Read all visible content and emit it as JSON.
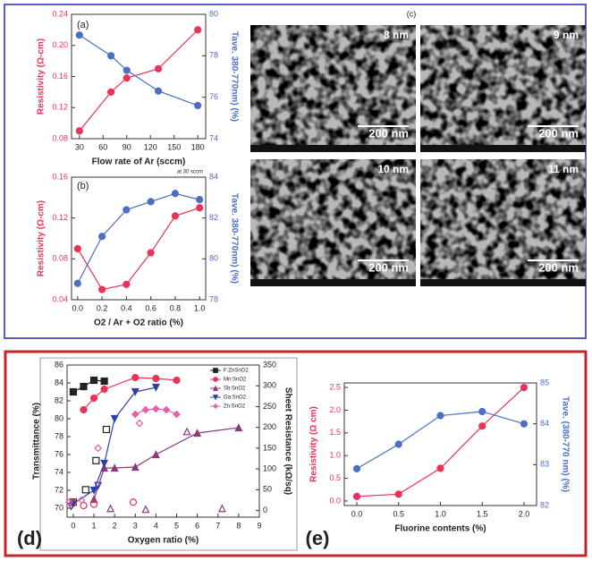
{
  "chart_data": [
    {
      "type": "line",
      "panel": "(a)",
      "x_label": "Flow rate of Ar (sccm)",
      "y_label": "Resistivity (Ω-cm)",
      "y2_label": "Tave. 380-770nm) (%)",
      "x": [
        30,
        70,
        90,
        130,
        180
      ],
      "xlim": [
        20,
        190
      ],
      "xticks": [
        30,
        60,
        90,
        120,
        150,
        180
      ],
      "ylim": [
        0.08,
        0.24
      ],
      "yticks": [
        0.08,
        0.12,
        0.16,
        {
          "value": 0.2,
          "label": "0.20"
        },
        0.24
      ],
      "y2lim": [
        74,
        80
      ],
      "y2ticks": [
        74,
        76,
        78,
        80
      ],
      "series": [
        {
          "color": "#e8335a",
          "marker": "circle",
          "values": [
            0.09,
            0.14,
            0.158,
            0.17,
            0.22
          ]
        },
        {
          "color": "#4a6fc4",
          "marker": "circle",
          "axis": "y2",
          "values": [
            79.0,
            78.0,
            77.3,
            76.3,
            75.6
          ]
        }
      ]
    },
    {
      "type": "line",
      "panel": "(b)",
      "annotation": "at 30 sccm",
      "x_label": "O2 / Ar + O2 ratio (%)",
      "y_label": "Resistivity (Ω-cm)",
      "y2_label": "Tave. 380-770nm) (%)",
      "x": [
        0,
        0.2,
        0.4,
        0.6,
        0.8,
        1.0
      ],
      "xlim": [
        -0.05,
        1.05
      ],
      "xticks": [
        {
          "value": 0,
          "label": "0.0"
        },
        0.2,
        0.4,
        0.6,
        0.8,
        {
          "value": 1,
          "label": "1.0"
        }
      ],
      "ylim": [
        0.04,
        0.16
      ],
      "yticks": [
        0.04,
        0.08,
        0.12,
        0.16
      ],
      "y2lim": [
        78,
        84
      ],
      "y2ticks": [
        78,
        80,
        82,
        84
      ],
      "series": [
        {
          "color": "#e8335a",
          "marker": "circle",
          "values": [
            0.09,
            0.05,
            0.055,
            0.086,
            0.122,
            0.13
          ]
        },
        {
          "color": "#4a6fc4",
          "marker": "circle",
          "axis": "y2",
          "values": [
            78.8,
            81.1,
            82.4,
            82.8,
            83.2,
            82.9
          ]
        }
      ]
    },
    {
      "type": "line",
      "panel": "(d)",
      "x_label": "Oxygen ratio (%)",
      "y_label": "Transmittance (%)",
      "y2_label": "Sheet Resistance (kΩ/sq)",
      "xlim": [
        -0.3,
        9
      ],
      "xticks": [
        0,
        1,
        2,
        3,
        4,
        5,
        6,
        7,
        8,
        9
      ],
      "ylim": [
        69,
        86
      ],
      "yticks": [
        70,
        72,
        74,
        76,
        78,
        80,
        82,
        84,
        86
      ],
      "y2lim": [
        -16,
        350
      ],
      "y2ticks": [
        0,
        50,
        100,
        150,
        200,
        250,
        300,
        350
      ],
      "legend": "upper right",
      "series": [
        {
          "name": "F:ZnSnO2",
          "color": "#222222",
          "marker": "square",
          "x": [
            0,
            0.5,
            1,
            1.5
          ],
          "values": [
            83.0,
            83.6,
            84.3,
            84.2
          ]
        },
        {
          "name": "Mn:SnO2",
          "color": "#e8335a",
          "marker": "circle",
          "x": [
            0.5,
            1,
            1.5,
            3,
            4,
            5
          ],
          "values": [
            81.0,
            82.3,
            83.3,
            84.6,
            84.5,
            84.3
          ]
        },
        {
          "name": "Sb:SnO2",
          "color": "#8b3a7a",
          "marker": "triangle",
          "x": [
            1,
            1.5,
            2,
            3,
            4,
            6,
            8
          ],
          "values": [
            71.0,
            74.5,
            74.5,
            74.6,
            76.0,
            78.4,
            79.0
          ]
        },
        {
          "name": "Ga:SnO2",
          "color": "#2f3fa8",
          "marker": "down",
          "x": [
            0,
            1,
            1.5,
            2,
            3,
            4
          ],
          "values": [
            70.5,
            72.0,
            75.0,
            80.0,
            83.0,
            83.5
          ]
        },
        {
          "name": "Zn:SnO2",
          "color": "#e85fa8",
          "marker": "diamond",
          "x": [
            3,
            3.5,
            4,
            4.5,
            5
          ],
          "values": [
            80.5,
            81.0,
            81.1,
            81.0,
            80.5
          ]
        },
        {
          "color": "#222222",
          "marker": "square",
          "open": true,
          "axis": "y2",
          "x": [
            0,
            0.6,
            1.1,
            1.6
          ],
          "values": [
            20,
            50,
            120,
            195
          ]
        },
        {
          "color": "#e8335a",
          "marker": "circle",
          "open": true,
          "axis": "y2",
          "x": [
            0,
            0.5,
            1,
            2.9
          ],
          "values": [
            18,
            12,
            15,
            20
          ]
        },
        {
          "color": "#8b3a7a",
          "marker": "triangle",
          "open": true,
          "axis": "y2",
          "x": [
            1.8,
            3.5,
            5.5,
            7.2
          ],
          "values": [
            5,
            3,
            190,
            5
          ]
        },
        {
          "color": "#2f3fa8",
          "marker": "down",
          "open": true,
          "axis": "y2",
          "x": [
            -0.1,
            1.2
          ],
          "values": [
            10,
            60
          ]
        },
        {
          "color": "#e85fa8",
          "marker": "diamond",
          "open": true,
          "axis": "y2",
          "x": [
            -0.2,
            0.4,
            1.2,
            3.2
          ],
          "values": [
            20,
            25,
            150,
            210
          ]
        }
      ]
    },
    {
      "type": "line",
      "panel": "(e)",
      "x_label": "Fluorine contents (%)",
      "y_label": "Resistivity (Ω cm)",
      "y2_label": "Tave. (380-770 nm) (%)",
      "x": [
        0,
        0.5,
        1.0,
        1.5,
        2.0
      ],
      "xlim": [
        -0.15,
        2.15
      ],
      "xticks": [
        {
          "value": 0,
          "label": "0.0"
        },
        0.5,
        {
          "value": 1,
          "label": "1.0"
        },
        1.5,
        {
          "value": 2,
          "label": "2.0"
        }
      ],
      "ylim": [
        -0.1,
        2.6
      ],
      "yticks": [
        {
          "value": 0,
          "label": "0.0"
        },
        0.5,
        {
          "value": 1,
          "label": "1.0"
        },
        1.5,
        {
          "value": 2,
          "label": "2.0"
        },
        2.5
      ],
      "y2lim": [
        82,
        85
      ],
      "y2ticks": [
        82,
        83,
        84,
        85
      ],
      "series": [
        {
          "color": "#e8335a",
          "marker": "circle",
          "values": [
            0.1,
            0.15,
            0.72,
            1.65,
            2.5
          ]
        },
        {
          "color": "#4a6fc4",
          "marker": "circle",
          "axis": "y2",
          "values": [
            82.9,
            83.5,
            84.2,
            84.3,
            84.0
          ]
        }
      ]
    }
  ],
  "sem_panel": {
    "label": "(c)",
    "images": [
      {
        "thickness": "8 nm",
        "scale_bar": "200 nm"
      },
      {
        "thickness": "9 nm",
        "scale_bar": "200 nm"
      },
      {
        "thickness": "10 nm",
        "scale_bar": "200 nm"
      },
      {
        "thickness": "11 nm",
        "scale_bar": "200 nm"
      }
    ]
  }
}
